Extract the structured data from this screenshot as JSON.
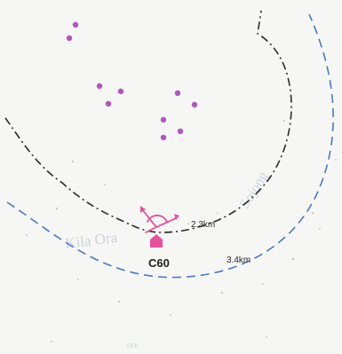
{
  "map": {
    "station": {
      "label": "C60",
      "marker_color": "#e8519b"
    },
    "rings": [
      {
        "name": "inner",
        "label": "2.3km",
        "color": "#2b2b2b",
        "style": "dash-dot"
      },
      {
        "name": "outer",
        "label": "3.4km",
        "color": "#4a78c4",
        "style": "dashed"
      }
    ],
    "place_labels": [
      {
        "name": "kila-ora",
        "text": "Kila Ora"
      },
      {
        "name": "sojong",
        "text": "Sojong"
      },
      {
        "name": "bottom",
        "text": "ore"
      }
    ],
    "dot_color": "#b455bf",
    "arrow_color": "#e8519b",
    "background_color": "#f6f7f5"
  }
}
